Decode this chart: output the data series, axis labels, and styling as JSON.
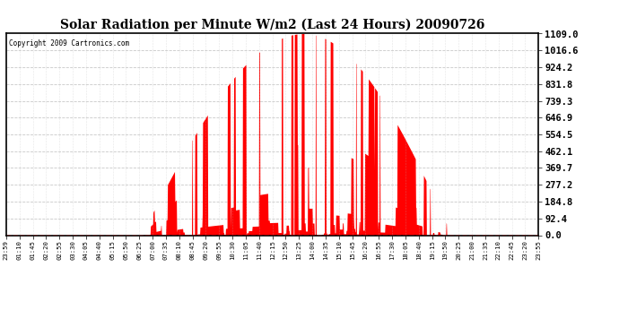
{
  "title": "Solar Radiation per Minute W/m2 (Last 24 Hours) 20090726",
  "copyright_text": "Copyright 2009 Cartronics.com",
  "bar_color": "#FF0000",
  "background_color": "#FFFFFF",
  "grid_color": "#AAAAAA",
  "dashed_line_color": "#FF0000",
  "y_ticks": [
    0.0,
    92.4,
    184.8,
    277.2,
    369.7,
    462.1,
    554.5,
    646.9,
    739.3,
    831.8,
    924.2,
    1016.6,
    1109.0
  ],
  "ymax": 1109.0,
  "ymin": 0.0,
  "x_labels": [
    "23:59",
    "01:10",
    "01:45",
    "02:20",
    "02:55",
    "03:30",
    "04:05",
    "04:40",
    "05:15",
    "05:50",
    "06:25",
    "07:00",
    "07:35",
    "08:10",
    "08:45",
    "09:20",
    "09:55",
    "10:30",
    "11:05",
    "11:40",
    "12:15",
    "12:50",
    "13:25",
    "14:00",
    "14:35",
    "15:10",
    "15:45",
    "16:20",
    "16:55",
    "17:30",
    "18:05",
    "18:40",
    "19:15",
    "19:50",
    "20:25",
    "21:00",
    "21:35",
    "22:10",
    "22:45",
    "23:20",
    "23:55"
  ],
  "n_points": 1440,
  "sunrise_hour": 6.08,
  "sunset_hour": 20.08,
  "peak_hour": 13.42,
  "peak_value": 1109.0,
  "cloud_seed": 7,
  "n_cloud_events": 60
}
